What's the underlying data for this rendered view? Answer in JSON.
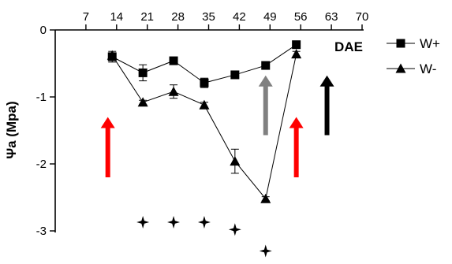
{
  "chart_data": {
    "type": "line",
    "title": "",
    "xlabel": "DAE",
    "ylabel": "Ψa (Mpa)",
    "x_ticks": [
      7,
      14,
      21,
      28,
      35,
      42,
      49,
      56,
      63,
      70
    ],
    "y_ticks": [
      0,
      -1,
      -2,
      -3
    ],
    "xlim": [
      0,
      70
    ],
    "ylim": [
      -3.4,
      0
    ],
    "x_axis_position": "top",
    "grid": false,
    "legend_position": "top-right",
    "series": [
      {
        "name": "W+",
        "marker": "square",
        "x": [
          13,
          20,
          27,
          34,
          41,
          48,
          55
        ],
        "y": [
          -0.4,
          -0.64,
          -0.46,
          -0.79,
          -0.67,
          -0.53,
          -0.22
        ],
        "error": [
          0.08,
          0.12,
          0.03,
          0.07,
          0.03,
          0.04,
          0.03
        ]
      },
      {
        "name": "W-",
        "marker": "triangle",
        "x": [
          13,
          20,
          27,
          34,
          41,
          48,
          55
        ],
        "y": [
          -0.38,
          -1.08,
          -0.92,
          -1.12,
          -1.96,
          -2.52,
          -0.36
        ],
        "error": [
          0.04,
          0.03,
          0.1,
          0.04,
          0.18,
          0.03,
          0.04
        ]
      }
    ],
    "arrows": [
      {
        "x": 12,
        "y_tail": -2.2,
        "y_head": -1.3,
        "color": "#ff0000"
      },
      {
        "x": 48,
        "y_tail": -1.57,
        "y_head": -0.68,
        "color": "#808080"
      },
      {
        "x": 55,
        "y_tail": -2.2,
        "y_head": -1.3,
        "color": "#ff0000"
      },
      {
        "x": 62,
        "y_tail": -1.57,
        "y_head": -0.68,
        "color": "#000000"
      }
    ],
    "significance_marks": [
      {
        "x": 20,
        "y": -2.87
      },
      {
        "x": 27,
        "y": -2.87
      },
      {
        "x": 34,
        "y": -2.87
      },
      {
        "x": 41,
        "y": -2.98
      },
      {
        "x": 48,
        "y": -3.3
      }
    ]
  }
}
